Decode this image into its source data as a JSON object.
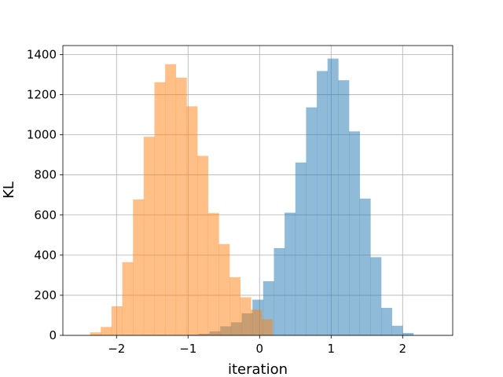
{
  "chart_data": {
    "type": "bar",
    "title": "",
    "xlabel": "iteration",
    "ylabel": "KL",
    "xlim": [
      -2.75,
      2.7
    ],
    "ylim": [
      0,
      1445
    ],
    "grid": true,
    "legend": "none",
    "xticks": [
      -2,
      -1,
      0,
      1,
      2
    ],
    "xtick_labels": [
      "−2",
      "−1",
      "0",
      "1",
      "2"
    ],
    "yticks": [
      0,
      200,
      400,
      600,
      800,
      1000,
      1200,
      1400
    ],
    "ytick_labels": [
      "0",
      "200",
      "400",
      "600",
      "800",
      "1000",
      "1200",
      "1400"
    ],
    "series": [
      {
        "color": "#1f77b4",
        "alpha": 0.5,
        "bin_edges": [
          -1.0,
          -0.85,
          -0.7,
          -0.55,
          -0.4,
          -0.25,
          -0.1,
          0.05,
          0.2,
          0.35,
          0.5,
          0.65,
          0.8,
          0.95,
          1.1,
          1.25,
          1.4,
          1.55,
          1.7,
          1.85,
          2.0,
          2.15
        ],
        "counts": [
          3,
          8,
          20,
          45,
          65,
          110,
          178,
          270,
          435,
          612,
          862,
          1137,
          1318,
          1380,
          1272,
          1017,
          682,
          390,
          137,
          48,
          12
        ]
      },
      {
        "color": "#ff7f0e",
        "alpha": 0.5,
        "bin_edges": [
          -2.37,
          -2.22,
          -2.07,
          -1.92,
          -1.77,
          -1.62,
          -1.47,
          -1.32,
          -1.17,
          -1.02,
          -0.87,
          -0.72,
          -0.57,
          -0.42,
          -0.27,
          -0.12,
          0.03,
          0.18
        ],
        "counts": [
          15,
          42,
          145,
          365,
          678,
          990,
          1262,
          1352,
          1285,
          1142,
          895,
          610,
          455,
          290,
          190,
          128,
          80
        ]
      }
    ]
  }
}
